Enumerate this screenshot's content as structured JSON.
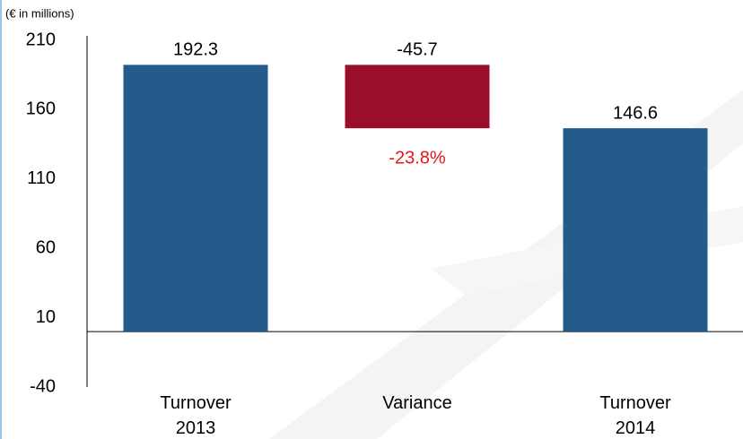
{
  "chart_data": {
    "type": "waterfall",
    "unit_label": "(€ in millions)",
    "categories": [
      "Turnover 2013",
      "Variance",
      "Turnover 2014"
    ],
    "values": [
      192.3,
      -45.7,
      146.6
    ],
    "kinds": [
      "total",
      "delta",
      "total"
    ],
    "colors": [
      "#255b8a",
      "#9b0e2b",
      "#255b8a"
    ],
    "annotation": "-23.8%",
    "annotation_color": "#e8141b",
    "ylim": [
      -40,
      210
    ],
    "yticks": [
      -40,
      10,
      60,
      110,
      160,
      210
    ]
  }
}
